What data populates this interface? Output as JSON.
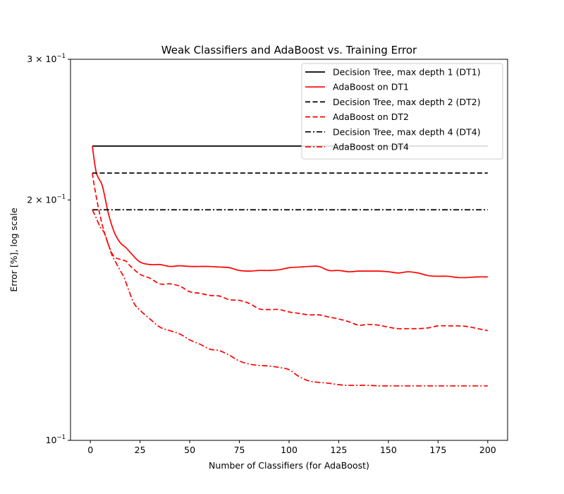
{
  "chart_data": {
    "type": "line",
    "title": "Weak Classifiers and AdaBoost vs. Training Error",
    "xlabel": "Number of Classifiers (for AdaBoost)",
    "ylabel": "Error [%], log scale",
    "x_scale": "linear",
    "y_scale": "log",
    "xlim": [
      -10,
      210
    ],
    "ylim": [
      0.1,
      0.3
    ],
    "xticks": [
      0,
      25,
      50,
      75,
      100,
      125,
      150,
      175,
      200
    ],
    "xtick_labels": [
      "0",
      "25",
      "50",
      "75",
      "100",
      "125",
      "150",
      "175",
      "200"
    ],
    "yticks": [
      {
        "value": 0.3,
        "base": "3 × 10",
        "exp": "−1"
      },
      {
        "value": 0.2,
        "base": "2 × 10",
        "exp": "−1"
      },
      {
        "value": 0.1,
        "base": "10",
        "exp": "−1"
      }
    ],
    "grid": false,
    "legend_position": "top-right",
    "series": [
      {
        "name": "Decision Tree, max depth 1 (DT1)",
        "color": "#000000",
        "linestyle": "solid",
        "x": [
          1,
          200
        ],
        "y": [
          0.2336,
          0.2336
        ]
      },
      {
        "name": "AdaBoost on DT1",
        "color": "#ff0000",
        "linestyle": "solid",
        "x": [
          1,
          3,
          6,
          9,
          12,
          15,
          18,
          21,
          25,
          30,
          35,
          40,
          45,
          50,
          55,
          60,
          65,
          70,
          75,
          80,
          85,
          90,
          95,
          100,
          105,
          110,
          115,
          120,
          125,
          130,
          135,
          140,
          145,
          150,
          155,
          160,
          165,
          170,
          175,
          180,
          185,
          190,
          195,
          200
        ],
        "y": [
          0.2336,
          0.2163,
          0.2084,
          0.1926,
          0.1823,
          0.1768,
          0.1742,
          0.1709,
          0.1672,
          0.166,
          0.166,
          0.1651,
          0.1654,
          0.1651,
          0.1651,
          0.1651,
          0.1648,
          0.1645,
          0.1632,
          0.1629,
          0.1632,
          0.1632,
          0.1635,
          0.1645,
          0.1648,
          0.1651,
          0.1651,
          0.1632,
          0.1632,
          0.1626,
          0.1629,
          0.1629,
          0.1629,
          0.1626,
          0.162,
          0.1626,
          0.162,
          0.1608,
          0.1605,
          0.1605,
          0.1599,
          0.1599,
          0.1602,
          0.1602
        ]
      },
      {
        "name": "Decision Tree, max depth 2 (DT2)",
        "color": "#000000",
        "linestyle": "dashed",
        "x": [
          1,
          200
        ],
        "y": [
          0.2161,
          0.2161
        ]
      },
      {
        "name": "AdaBoost on DT2",
        "color": "#ff0000",
        "linestyle": "dashed",
        "x": [
          1,
          2,
          4,
          6,
          8,
          10,
          12,
          15,
          18,
          20,
          25,
          30,
          35,
          40,
          45,
          50,
          55,
          60,
          65,
          70,
          75,
          80,
          85,
          90,
          95,
          100,
          105,
          110,
          115,
          120,
          125,
          130,
          135,
          140,
          145,
          150,
          155,
          160,
          165,
          170,
          175,
          180,
          185,
          190,
          195,
          200
        ],
        "y": [
          0.2161,
          0.2082,
          0.1957,
          0.1861,
          0.179,
          0.1734,
          0.1698,
          0.1685,
          0.1676,
          0.1654,
          0.1614,
          0.1596,
          0.157,
          0.157,
          0.156,
          0.1535,
          0.1528,
          0.1519,
          0.1516,
          0.15,
          0.1497,
          0.1484,
          0.1461,
          0.1458,
          0.1458,
          0.1448,
          0.1442,
          0.1436,
          0.1436,
          0.1427,
          0.1419,
          0.1408,
          0.1394,
          0.1397,
          0.1394,
          0.1386,
          0.138,
          0.138,
          0.138,
          0.1383,
          0.1391,
          0.1391,
          0.1391,
          0.1388,
          0.138,
          0.1372
        ]
      },
      {
        "name": "Decision Tree, max depth 4 (DT4)",
        "color": "#000000",
        "linestyle": "dashdot",
        "x": [
          1,
          200
        ],
        "y": [
          0.1944,
          0.1944
        ]
      },
      {
        "name": "AdaBoost on DT4",
        "color": "#ff0000",
        "linestyle": "dashdot",
        "x": [
          1,
          3,
          5,
          7,
          9,
          11,
          13,
          15,
          17,
          19,
          22,
          25,
          30,
          35,
          40,
          45,
          50,
          55,
          60,
          65,
          70,
          75,
          80,
          85,
          90,
          95,
          100,
          105,
          110,
          115,
          120,
          125,
          130,
          135,
          140,
          145,
          150,
          155,
          160,
          165,
          170,
          175,
          180,
          185,
          190,
          195,
          200
        ],
        "y": [
          0.1944,
          0.1897,
          0.1849,
          0.1819,
          0.176,
          0.1703,
          0.1667,
          0.1632,
          0.1599,
          0.1549,
          0.1484,
          0.1455,
          0.1419,
          0.1386,
          0.1372,
          0.1359,
          0.1336,
          0.132,
          0.1301,
          0.1295,
          0.1278,
          0.1257,
          0.1246,
          0.1241,
          0.1239,
          0.1234,
          0.1226,
          0.1202,
          0.1187,
          0.1182,
          0.1179,
          0.1174,
          0.1172,
          0.1172,
          0.1172,
          0.117,
          0.117,
          0.117,
          0.117,
          0.117,
          0.117,
          0.117,
          0.117,
          0.117,
          0.117,
          0.117,
          0.117
        ]
      }
    ]
  }
}
